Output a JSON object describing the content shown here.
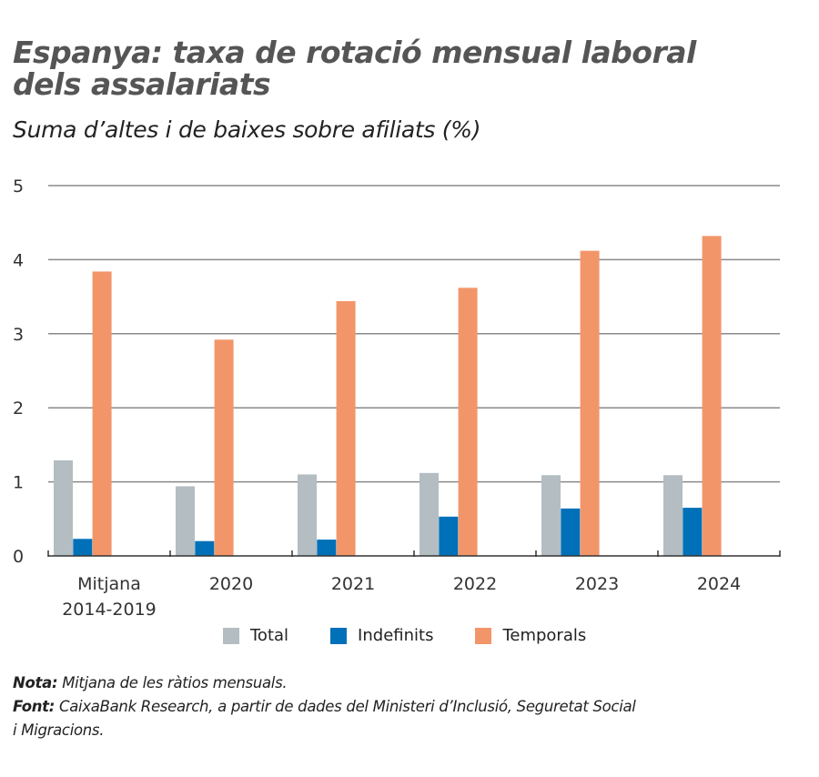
{
  "title_line1": "Espanya: taxa de rotació mensual laboral",
  "title_line2": "dels assalariats",
  "subtitle": "Suma d’altes i de baixes sobre afiliats (%)",
  "chart_data": {
    "type": "bar",
    "title": "Espanya: taxa de rotació mensual laboral dels assalariats",
    "subtitle": "Suma d’altes i de baixes sobre afiliats (%)",
    "categories": [
      [
        "Mitjana",
        "2014-2019"
      ],
      [
        "2020"
      ],
      [
        "2021"
      ],
      [
        "2022"
      ],
      [
        "2023"
      ],
      [
        "2024"
      ]
    ],
    "series": [
      {
        "name": "Total",
        "color": "#b3bdc2",
        "values": [
          1.29,
          0.94,
          1.1,
          1.12,
          1.09,
          1.09
        ]
      },
      {
        "name": "Indefinits",
        "color": "#0070b8",
        "values": [
          0.23,
          0.2,
          0.22,
          0.53,
          0.64,
          0.65
        ]
      },
      {
        "name": "Temporals",
        "color": "#f2966a",
        "values": [
          3.84,
          2.92,
          3.44,
          3.62,
          4.12,
          4.32
        ]
      }
    ],
    "ylim": [
      0,
      5
    ],
    "yticks": [
      "0",
      "1",
      "2",
      "3",
      "4",
      "5"
    ],
    "grid": true,
    "legend": "bottom"
  },
  "notes": {
    "nota_label": "Nota:",
    "nota_text": " Mitjana de les ràtios mensuals.",
    "font_label": "Font:",
    "font_text": " CaixaBank Research, a partir de dades del Ministeri d’Inclusió, Seguretat Social",
    "font_text2": "i Migracions."
  }
}
